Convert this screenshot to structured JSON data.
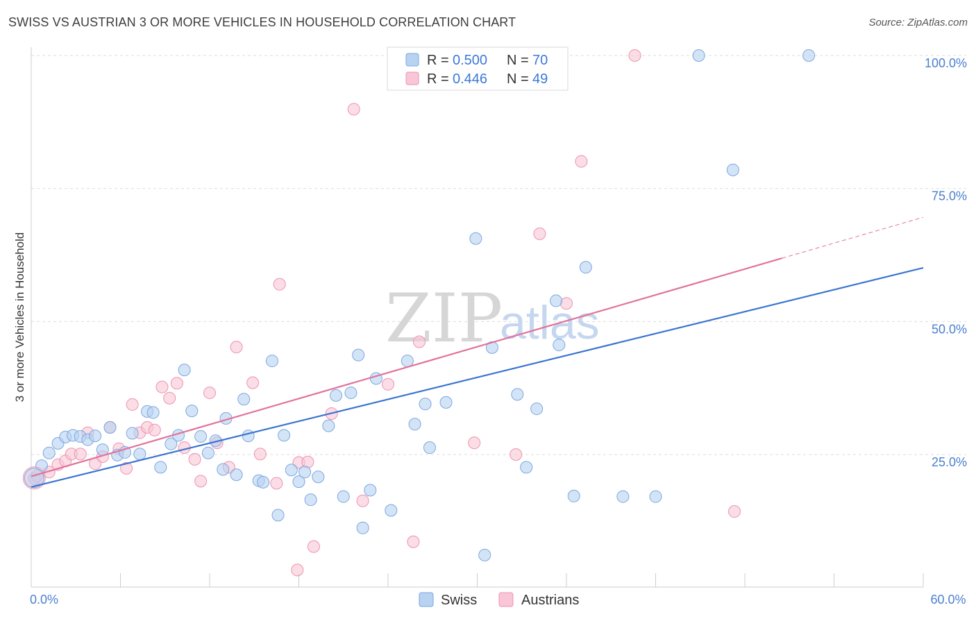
{
  "header": {
    "title": "SWISS VS AUSTRIAN 3 OR MORE VEHICLES IN HOUSEHOLD CORRELATION CHART",
    "source": "Source: ZipAtlas.com"
  },
  "watermark": {
    "zip": "ZIP",
    "atlas": "atlas"
  },
  "legend": {
    "rows": [
      {
        "r_label": "R =",
        "r_value": "0.500",
        "n_label": "N =",
        "n_value": "70",
        "color": "#a9c8f0"
      },
      {
        "r_label": "R =",
        "r_value": "0.446",
        "n_label": "N =",
        "n_value": "49",
        "color": "#f5b8cb"
      }
    ]
  },
  "bottom_legend": {
    "items": [
      "Swiss",
      "Austrians"
    ]
  },
  "colors": {
    "swiss_fill": "#b8d2f2",
    "swiss_stroke": "#7aa7e0",
    "swiss_line": "#3a74d0",
    "austrian_fill": "#f8c6d6",
    "austrian_stroke": "#ee92b0",
    "austrian_line": "#e2729a",
    "grid": "#dddddd",
    "tick_label": "#4a7fd0"
  },
  "chart_data": {
    "type": "scatter",
    "title": "SWISS VS AUSTRIAN 3 OR MORE VEHICLES IN HOUSEHOLD CORRELATION CHART",
    "xlabel": "",
    "ylabel": "3 or more Vehicles in Household",
    "xlim": [
      0,
      60
    ],
    "ylim": [
      0,
      105
    ],
    "x_ticks": [
      0,
      60
    ],
    "x_tick_labels": [
      "0.0%",
      "60.0%"
    ],
    "y_ticks": [
      25,
      50,
      75,
      100
    ],
    "y_tick_labels": [
      "25.0%",
      "50.0%",
      "75.0%",
      "100.0%"
    ],
    "grid": true,
    "legend_position": "top-center",
    "series": [
      {
        "name": "Swiss",
        "R": 0.5,
        "N": 70,
        "trend": {
          "x": [
            0,
            60
          ],
          "y": [
            18.9,
            60.1
          ]
        },
        "points": [
          [
            0.2,
            20.5
          ],
          [
            0.7,
            22.9
          ],
          [
            1.2,
            25.3
          ],
          [
            1.8,
            27.1
          ],
          [
            2.3,
            28.3
          ],
          [
            2.8,
            28.6
          ],
          [
            3.3,
            28.4
          ],
          [
            3.8,
            27.8
          ],
          [
            4.3,
            28.5
          ],
          [
            4.8,
            25.9
          ],
          [
            5.3,
            30.1
          ],
          [
            5.8,
            24.9
          ],
          [
            6.3,
            25.4
          ],
          [
            6.8,
            29.0
          ],
          [
            7.3,
            25.1
          ],
          [
            7.8,
            33.1
          ],
          [
            8.2,
            32.9
          ],
          [
            8.7,
            22.6
          ],
          [
            9.4,
            27.0
          ],
          [
            9.9,
            28.6
          ],
          [
            10.3,
            40.9
          ],
          [
            10.8,
            33.2
          ],
          [
            11.4,
            28.4
          ],
          [
            11.9,
            25.3
          ],
          [
            12.4,
            27.6
          ],
          [
            12.9,
            22.2
          ],
          [
            13.1,
            31.8
          ],
          [
            13.8,
            21.2
          ],
          [
            14.3,
            35.4
          ],
          [
            14.6,
            28.5
          ],
          [
            15.3,
            20.1
          ],
          [
            15.6,
            19.8
          ],
          [
            16.2,
            42.6
          ],
          [
            16.6,
            13.6
          ],
          [
            17.0,
            28.6
          ],
          [
            17.5,
            22.1
          ],
          [
            18.0,
            19.9
          ],
          [
            18.4,
            21.7
          ],
          [
            18.8,
            16.5
          ],
          [
            19.3,
            20.8
          ],
          [
            20.0,
            30.4
          ],
          [
            20.5,
            36.1
          ],
          [
            21.0,
            17.1
          ],
          [
            21.5,
            36.6
          ],
          [
            22.0,
            43.7
          ],
          [
            22.3,
            11.2
          ],
          [
            22.8,
            18.3
          ],
          [
            23.2,
            39.3
          ],
          [
            24.2,
            14.5
          ],
          [
            25.3,
            42.6
          ],
          [
            25.8,
            30.7
          ],
          [
            26.5,
            34.5
          ],
          [
            26.8,
            26.3
          ],
          [
            27.9,
            34.8
          ],
          [
            29.9,
            65.6
          ],
          [
            30.5,
            6.1
          ],
          [
            31.0,
            45.1
          ],
          [
            32.7,
            36.3
          ],
          [
            33.3,
            22.6
          ],
          [
            34.0,
            33.6
          ],
          [
            35.3,
            53.9
          ],
          [
            35.5,
            45.6
          ],
          [
            36.5,
            17.2
          ],
          [
            37.3,
            60.2
          ],
          [
            39.8,
            17.1
          ],
          [
            42.0,
            17.1
          ],
          [
            44.9,
            100.0
          ],
          [
            47.2,
            78.5
          ],
          [
            52.3,
            100.0
          ],
          [
            0.4,
            21.0
          ]
        ]
      },
      {
        "name": "Austrians",
        "R": 0.446,
        "N": 49,
        "trend": {
          "x": [
            0,
            50.5
          ],
          "y": [
            20.9,
            61.9
          ]
        },
        "trend_dashed": {
          "x": [
            50.5,
            60
          ],
          "y": [
            61.9,
            69.6
          ]
        },
        "points": [
          [
            0.3,
            20.4
          ],
          [
            1.2,
            21.7
          ],
          [
            1.8,
            23.1
          ],
          [
            2.3,
            23.8
          ],
          [
            2.7,
            25.1
          ],
          [
            3.3,
            25.1
          ],
          [
            3.8,
            29.1
          ],
          [
            4.3,
            23.3
          ],
          [
            4.8,
            24.6
          ],
          [
            5.3,
            30.1
          ],
          [
            5.9,
            26.1
          ],
          [
            6.4,
            22.4
          ],
          [
            6.8,
            34.4
          ],
          [
            7.3,
            29.1
          ],
          [
            7.8,
            30.1
          ],
          [
            8.3,
            29.6
          ],
          [
            8.8,
            37.7
          ],
          [
            9.3,
            35.6
          ],
          [
            9.8,
            38.4
          ],
          [
            10.3,
            26.3
          ],
          [
            11.0,
            24.1
          ],
          [
            11.4,
            20.0
          ],
          [
            12.0,
            36.6
          ],
          [
            12.5,
            27.2
          ],
          [
            13.3,
            22.6
          ],
          [
            13.8,
            45.2
          ],
          [
            14.9,
            38.5
          ],
          [
            15.4,
            25.1
          ],
          [
            16.5,
            19.6
          ],
          [
            16.7,
            57.0
          ],
          [
            17.9,
            3.3
          ],
          [
            18.0,
            23.5
          ],
          [
            18.6,
            23.6
          ],
          [
            19.0,
            7.7
          ],
          [
            20.2,
            32.7
          ],
          [
            21.7,
            89.9
          ],
          [
            22.3,
            16.3
          ],
          [
            24.0,
            38.2
          ],
          [
            25.7,
            8.6
          ],
          [
            26.1,
            46.2
          ],
          [
            27.5,
            100.0
          ],
          [
            29.8,
            27.2
          ],
          [
            32.6,
            25.0
          ],
          [
            34.2,
            66.5
          ],
          [
            36.0,
            53.4
          ],
          [
            37.0,
            80.1
          ],
          [
            40.6,
            100.0
          ],
          [
            47.3,
            14.3
          ],
          [
            25.9,
            100.0
          ]
        ]
      }
    ]
  }
}
